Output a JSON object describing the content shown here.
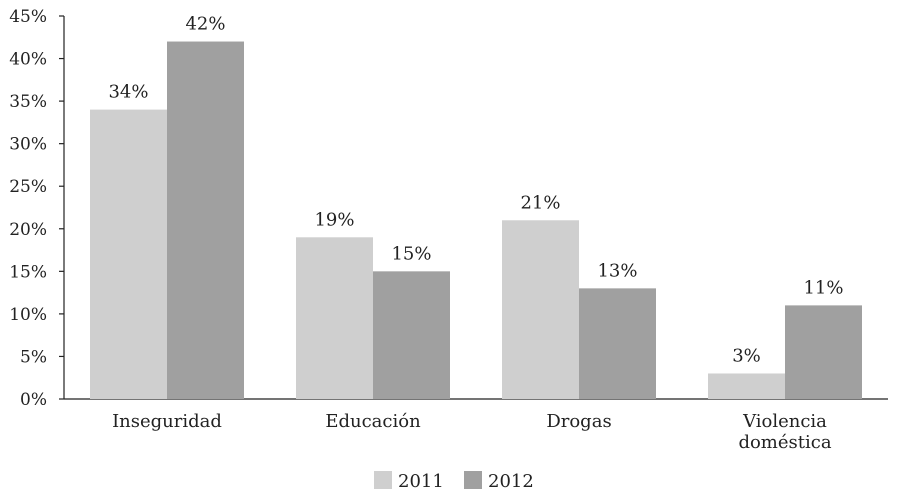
{
  "chart_data": {
    "type": "bar",
    "categories": [
      [
        "Inseguridad"
      ],
      [
        "Educación"
      ],
      [
        "Drogas"
      ],
      [
        "Violencia",
        "doméstica"
      ]
    ],
    "series": [
      {
        "name": "2011",
        "values": [
          34,
          19,
          21,
          3
        ],
        "labels": [
          "34%",
          "19%",
          "21%",
          "3%"
        ],
        "color": "#cfcfcf"
      },
      {
        "name": "2012",
        "values": [
          42,
          15,
          13,
          11
        ],
        "labels": [
          "42%",
          "15%",
          "13%",
          "11%"
        ],
        "color": "#a0a0a0"
      }
    ],
    "ylim": [
      0,
      45
    ],
    "yticks": [
      0,
      5,
      10,
      15,
      20,
      25,
      30,
      35,
      40,
      45
    ],
    "ytick_labels": [
      "0%",
      "5%",
      "10%",
      "15%",
      "20%",
      "25%",
      "30%",
      "35%",
      "40%",
      "45%"
    ],
    "title": "",
    "xlabel": "",
    "ylabel": "",
    "grid": false,
    "legend_position": "bottom-center"
  }
}
